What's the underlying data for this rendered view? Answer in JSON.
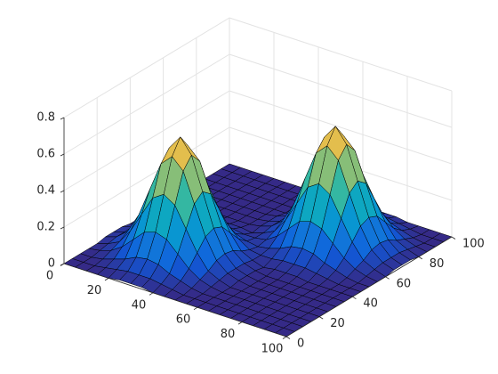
{
  "chart_data": {
    "type": "surface",
    "colormap": "parula",
    "grid": true,
    "x": [
      0,
      5,
      10,
      15,
      20,
      25,
      30,
      35,
      40,
      45,
      50,
      55,
      60,
      65,
      70,
      75,
      80,
      85,
      90,
      95,
      100
    ],
    "y": [
      0,
      5,
      10,
      15,
      20,
      25,
      30,
      35,
      40,
      45,
      50,
      55,
      60,
      65,
      70,
      75,
      80,
      85,
      90,
      95,
      100
    ],
    "z": [
      [
        0,
        0,
        0,
        0,
        0,
        0.01,
        0.01,
        0.01,
        0,
        0,
        0,
        0,
        0,
        0,
        0,
        0,
        0,
        0,
        0,
        0,
        0
      ],
      [
        0,
        0,
        0,
        0.01,
        0.02,
        0.03,
        0.03,
        0.03,
        0.02,
        0.01,
        0,
        0,
        0,
        0,
        0,
        0,
        0,
        0,
        0,
        0,
        0
      ],
      [
        0,
        0,
        0.01,
        0.03,
        0.05,
        0.08,
        0.09,
        0.08,
        0.05,
        0.03,
        0.01,
        0,
        0,
        0,
        0,
        0,
        0,
        0,
        0,
        0,
        0
      ],
      [
        0,
        0.01,
        0.03,
        0.07,
        0.13,
        0.19,
        0.21,
        0.19,
        0.13,
        0.07,
        0.03,
        0.01,
        0,
        0,
        0,
        0,
        0,
        0,
        0,
        0,
        0
      ],
      [
        0,
        0.02,
        0.05,
        0.13,
        0.24,
        0.35,
        0.39,
        0.35,
        0.24,
        0.13,
        0.05,
        0.02,
        0,
        0,
        0,
        0,
        0,
        0,
        0,
        0,
        0
      ],
      [
        0.01,
        0.03,
        0.08,
        0.19,
        0.35,
        0.51,
        0.57,
        0.51,
        0.35,
        0.19,
        0.08,
        0.03,
        0.01,
        0,
        0,
        0,
        0,
        0,
        0,
        0,
        0
      ],
      [
        0.01,
        0.03,
        0.09,
        0.21,
        0.39,
        0.57,
        0.65,
        0.57,
        0.39,
        0.21,
        0.09,
        0.03,
        0.01,
        0,
        0,
        0,
        0,
        0,
        0,
        0,
        0
      ],
      [
        0.01,
        0.03,
        0.08,
        0.19,
        0.35,
        0.51,
        0.57,
        0.51,
        0.35,
        0.19,
        0.08,
        0.03,
        0.01,
        0,
        0,
        0,
        0,
        0,
        0,
        0,
        0
      ],
      [
        0,
        0.02,
        0.05,
        0.13,
        0.24,
        0.35,
        0.39,
        0.35,
        0.24,
        0.13,
        0.05,
        0.02,
        0,
        0.01,
        0.01,
        0.01,
        0,
        0,
        0,
        0,
        0
      ],
      [
        0,
        0.01,
        0.03,
        0.07,
        0.13,
        0.19,
        0.21,
        0.19,
        0.13,
        0.07,
        0.03,
        0.02,
        0.02,
        0.03,
        0.03,
        0.03,
        0.02,
        0.01,
        0,
        0,
        0
      ],
      [
        0,
        0,
        0.01,
        0.03,
        0.05,
        0.08,
        0.09,
        0.08,
        0.05,
        0.03,
        0.02,
        0.03,
        0.05,
        0.08,
        0.09,
        0.08,
        0.05,
        0.03,
        0.01,
        0,
        0
      ],
      [
        0,
        0,
        0,
        0.01,
        0.02,
        0.03,
        0.03,
        0.03,
        0.02,
        0.02,
        0.03,
        0.07,
        0.13,
        0.19,
        0.21,
        0.19,
        0.13,
        0.07,
        0.03,
        0.01,
        0
      ],
      [
        0,
        0,
        0,
        0,
        0,
        0.01,
        0.01,
        0.01,
        0,
        0.02,
        0.05,
        0.13,
        0.24,
        0.35,
        0.39,
        0.35,
        0.24,
        0.13,
        0.05,
        0.02,
        0
      ],
      [
        0,
        0,
        0,
        0,
        0,
        0,
        0,
        0,
        0.01,
        0.03,
        0.08,
        0.19,
        0.35,
        0.51,
        0.57,
        0.51,
        0.35,
        0.19,
        0.08,
        0.03,
        0.01
      ],
      [
        0,
        0,
        0,
        0,
        0,
        0,
        0,
        0,
        0.01,
        0.03,
        0.09,
        0.21,
        0.39,
        0.57,
        0.65,
        0.57,
        0.39,
        0.21,
        0.09,
        0.03,
        0.01
      ],
      [
        0,
        0,
        0,
        0,
        0,
        0,
        0,
        0,
        0.01,
        0.03,
        0.08,
        0.19,
        0.35,
        0.51,
        0.57,
        0.51,
        0.35,
        0.19,
        0.08,
        0.03,
        0.01
      ],
      [
        0,
        0,
        0,
        0,
        0,
        0,
        0,
        0,
        0,
        0.02,
        0.05,
        0.13,
        0.24,
        0.35,
        0.39,
        0.35,
        0.24,
        0.13,
        0.05,
        0.02,
        0
      ],
      [
        0,
        0,
        0,
        0,
        0,
        0,
        0,
        0,
        0,
        0.01,
        0.03,
        0.07,
        0.13,
        0.19,
        0.21,
        0.19,
        0.13,
        0.07,
        0.03,
        0.01,
        0
      ],
      [
        0,
        0,
        0,
        0,
        0,
        0,
        0,
        0,
        0,
        0,
        0.01,
        0.03,
        0.05,
        0.08,
        0.09,
        0.08,
        0.05,
        0.03,
        0.01,
        0,
        0
      ],
      [
        0,
        0,
        0,
        0,
        0,
        0,
        0,
        0,
        0,
        0,
        0,
        0.01,
        0.02,
        0.03,
        0.03,
        0.03,
        0.02,
        0.01,
        0,
        0,
        0
      ],
      [
        0,
        0,
        0,
        0,
        0,
        0,
        0,
        0,
        0,
        0,
        0,
        0,
        0,
        0.01,
        0.01,
        0.01,
        0,
        0,
        0,
        0,
        0
      ]
    ],
    "xlim": [
      0,
      100
    ],
    "xticks": [
      0,
      20,
      40,
      60,
      80,
      100
    ],
    "ylim": [
      0,
      100
    ],
    "yticks": [
      0,
      20,
      40,
      60,
      80,
      100
    ],
    "zlim": [
      0,
      0.8
    ],
    "zticks": [
      0,
      0.2,
      0.4,
      0.6,
      0.8
    ]
  }
}
